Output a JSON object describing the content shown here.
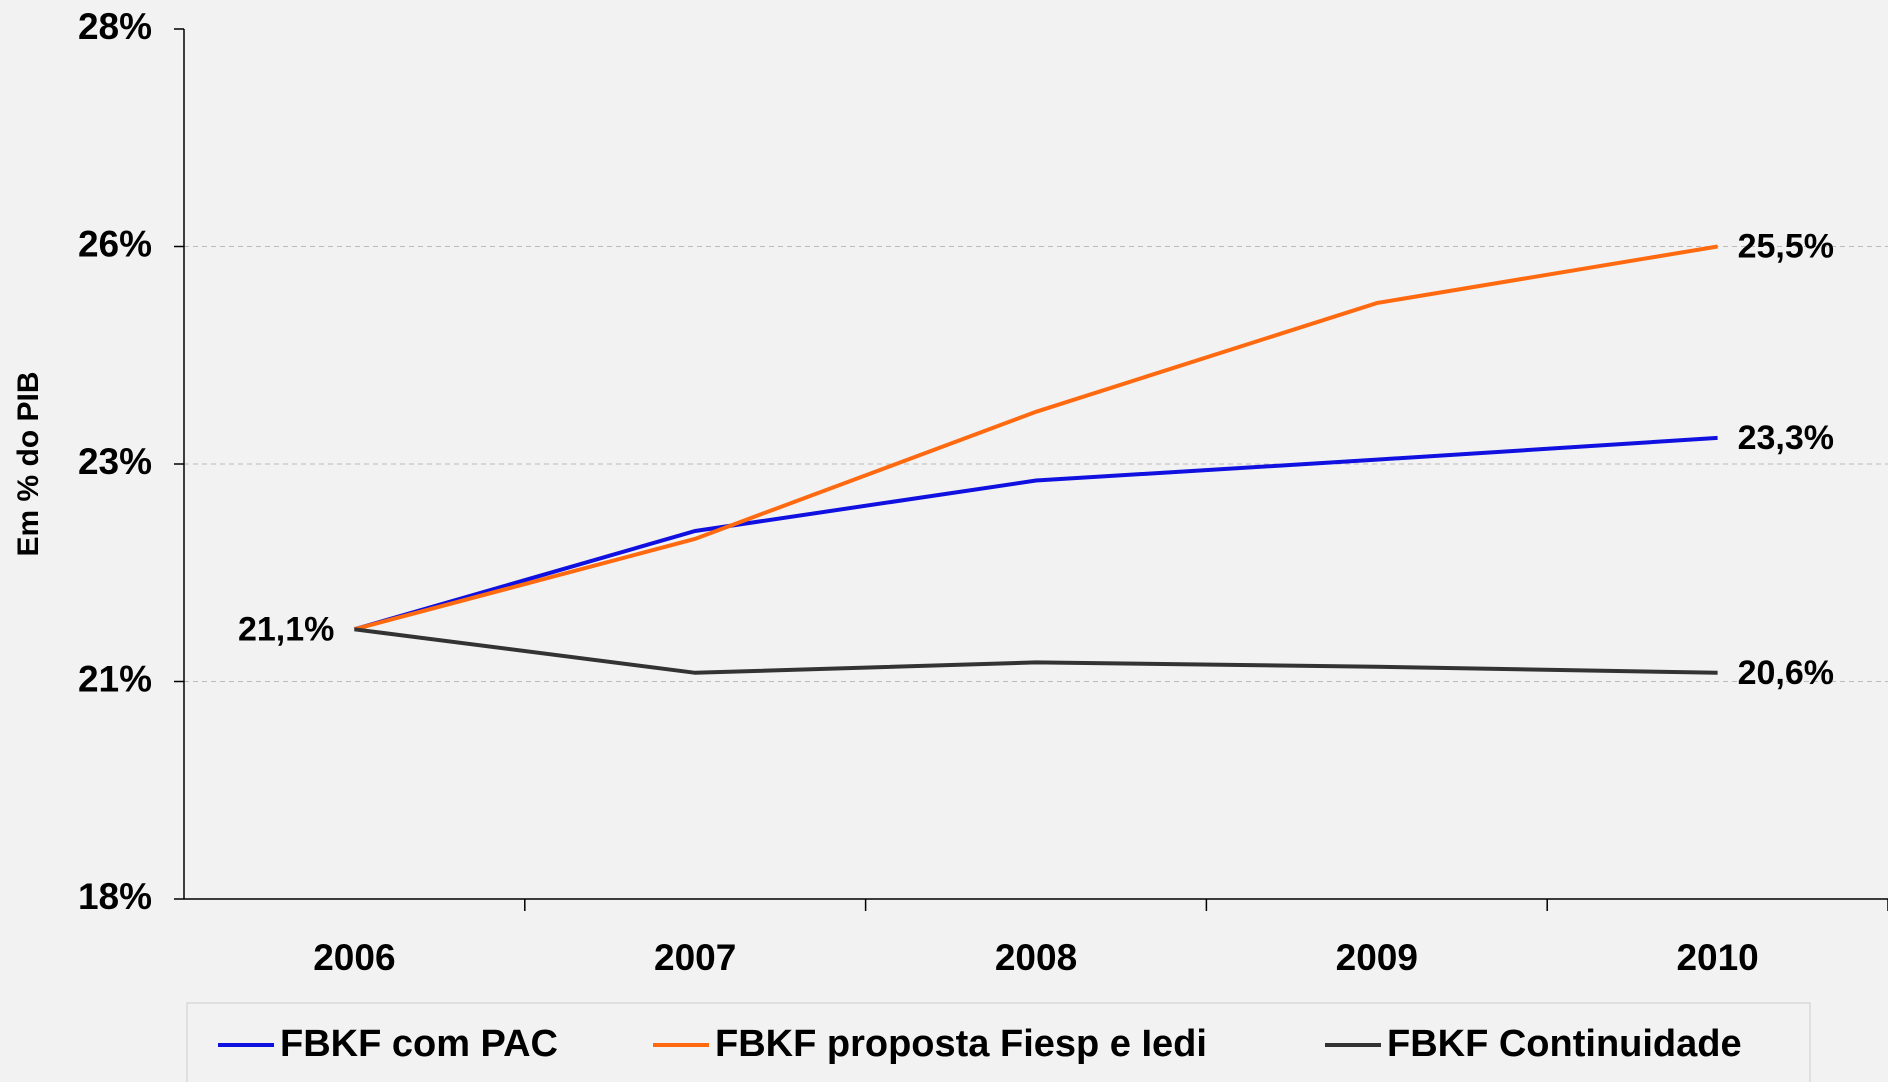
{
  "chart_data": {
    "type": "line",
    "y_label": "Em % do PIB",
    "categories": [
      "2006",
      "2007",
      "2008",
      "2009",
      "2010"
    ],
    "series": [
      {
        "name": "FBKF com PAC",
        "color": "#1010e0",
        "values": [
          21.1,
          22.23,
          22.81,
          23.05,
          23.3
        ],
        "value_labels": [
          "21,1%",
          null,
          null,
          null,
          "23,3%"
        ]
      },
      {
        "name": "FBKF proposta Fiesp e Iedi",
        "color": "#ff6a10",
        "values": [
          21.1,
          22.14,
          23.6,
          24.85,
          25.5
        ],
        "value_labels": [
          null,
          null,
          null,
          null,
          "25,5%"
        ]
      },
      {
        "name": "FBKF Continuidade",
        "color": "#333333",
        "values": [
          21.1,
          20.6,
          20.72,
          20.67,
          20.6
        ],
        "value_labels": [
          null,
          null,
          null,
          null,
          "20,6%"
        ]
      }
    ],
    "ylim": [
      18,
      28
    ],
    "yticks": [
      {
        "value": 18,
        "label": "18%"
      },
      {
        "value": 20.5,
        "label": "21%"
      },
      {
        "value": 23,
        "label": "23%"
      },
      {
        "value": 25.5,
        "label": "26%"
      },
      {
        "value": 28,
        "label": "28%"
      }
    ],
    "grid": true,
    "legend": "bottom"
  }
}
